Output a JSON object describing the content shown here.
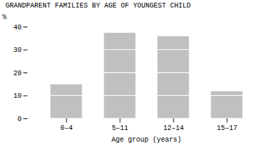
{
  "chart_data": {
    "type": "bar",
    "title": "GRANDPARENT FAMILIES BY AGE OF YOUNGEST CHILD",
    "xlabel": "Age group (years)",
    "ylabel": "%",
    "categories": [
      "0–4",
      "5–11",
      "12–14",
      "15–17"
    ],
    "stacked": true,
    "series": [
      {
        "color": "#c0c0c0",
        "values": [
          10,
          10,
          10,
          10
        ]
      },
      {
        "color": "#c0c0c0",
        "values": [
          5,
          10,
          10,
          2
        ]
      },
      {
        "color": "#c0c0c0",
        "values": [
          null,
          10,
          10,
          null
        ]
      },
      {
        "color": "#c0c0c0",
        "values": [
          null,
          7.5,
          6,
          null
        ]
      }
    ],
    "ylim": [
      0,
      40
    ],
    "yticks": [
      0,
      10,
      20,
      30,
      40
    ],
    "grid": false
  }
}
